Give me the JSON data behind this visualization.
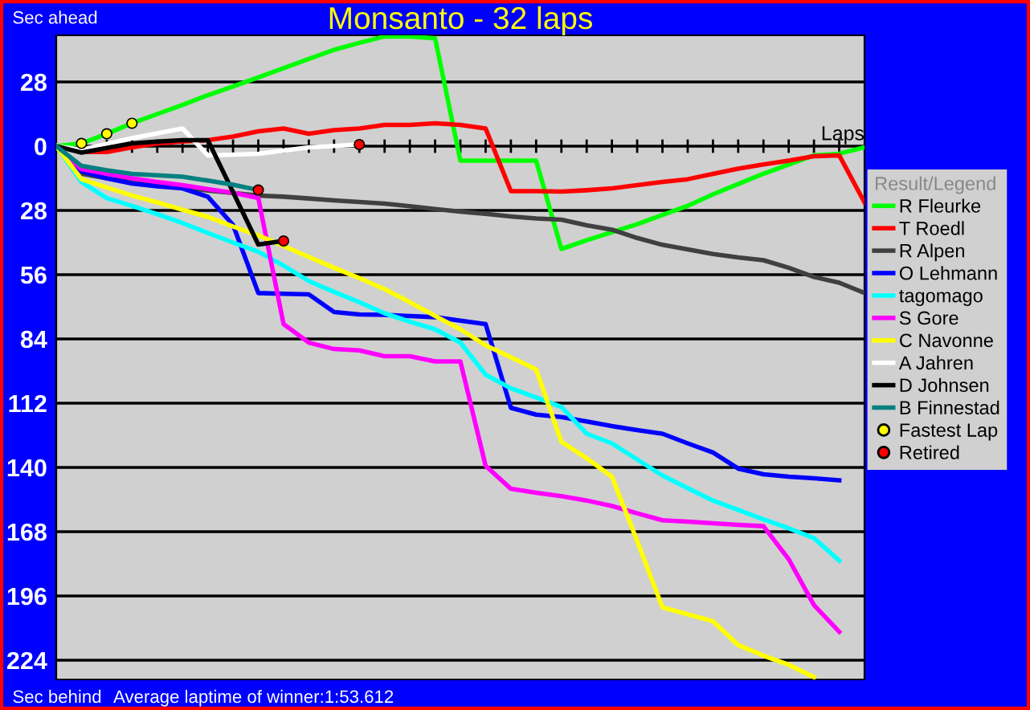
{
  "chart_data": {
    "type": "line",
    "title": "Monsanto - 32 laps",
    "xlabel": "Laps",
    "ylabel": "Sec ahead",
    "annotations": [
      "Sec behind",
      "Average laptime of winner:1:53.612"
    ],
    "legend_title": "Result/Legend",
    "legend": "right",
    "grid": "y",
    "tick_labels": "y",
    "marker": "none",
    "line_style": "solid",
    "categories": [
      null,
      null,
      null,
      null,
      null,
      null,
      null,
      null,
      null,
      null,
      null,
      null,
      null,
      null,
      null,
      null,
      null,
      null,
      null,
      null,
      null,
      null,
      null,
      null,
      null,
      null,
      null,
      null,
      null,
      null,
      null,
      null,
      null
    ],
    "ylim": [
      -232.4,
      48.3
    ],
    "yticks": [
      {
        "value": 28,
        "label": "28"
      },
      {
        "value": 0,
        "label": "0"
      },
      {
        "value": -28,
        "label": "28"
      },
      {
        "value": -56,
        "label": "56"
      },
      {
        "value": -84,
        "label": "84"
      },
      {
        "value": -112,
        "label": "112"
      },
      {
        "value": -140,
        "label": "140"
      },
      {
        "value": -168,
        "label": "168"
      },
      {
        "value": -196,
        "label": "196"
      },
      {
        "value": -224,
        "label": "224"
      }
    ],
    "series": [
      {
        "name": "R Fleurke",
        "color": "#00ff00",
        "values": [
          0,
          1.2,
          5.4,
          10,
          14,
          18,
          22.2,
          26,
          30,
          34,
          38,
          42,
          45,
          47.8,
          47.8,
          47,
          -6.3,
          -6.3,
          -6.3,
          -6.3,
          -44.8,
          -41,
          -37.5,
          -34,
          -30,
          -26,
          -21,
          -16.5,
          -12,
          -8,
          -4,
          -3.3,
          -0.5
        ]
      },
      {
        "name": "T Roedl",
        "color": "#ff0000",
        "values": [
          0,
          -2.5,
          -2.5,
          -0.5,
          1.2,
          2,
          2.6,
          4.2,
          6.5,
          7.7,
          5.4,
          7,
          7.7,
          9.3,
          9.3,
          10,
          9.3,
          7.7,
          -19.6,
          -19.6,
          -19.8,
          -19.2,
          -18.4,
          -17,
          -15.6,
          -14.4,
          -12.1,
          -9.8,
          -8,
          -6.3,
          -4.4,
          -4,
          -24.5
        ]
      },
      {
        "name": "R Alpen",
        "color": "#404040",
        "values": [
          0,
          -12,
          -14,
          -15.5,
          -16.8,
          -18,
          -19.3,
          -20.4,
          -21.5,
          -22,
          -22.8,
          -23.6,
          -24.3,
          -25,
          -26.2,
          -27.4,
          -28.5,
          -29.5,
          -30.6,
          -31.5,
          -32,
          -34.5,
          -36.4,
          -40,
          -43,
          -45,
          -47,
          -48.5,
          -49.7,
          -53,
          -57,
          -59.5,
          -64
        ]
      },
      {
        "name": "O Lehmann",
        "color": "#0000ff",
        "values": [
          0,
          -11,
          -14,
          -16.3,
          -17.5,
          -18.4,
          -22,
          -34.3,
          -64,
          -64.3,
          -64.6,
          -72.3,
          -73.3,
          -73.5,
          -74,
          -74.5,
          -76,
          -77.5,
          -114,
          -117,
          -118,
          -120,
          -122,
          -123.7,
          -125.3,
          -129.5,
          -133.5,
          -140.5,
          -143,
          -144,
          -144.7,
          -145.6,
          null
        ]
      },
      {
        "name": "tagomago",
        "color": "#00ffff",
        "values": [
          0,
          -15.6,
          -22.6,
          -26,
          -29.6,
          -33.5,
          -37.8,
          -42,
          -46,
          -52,
          -58.8,
          -63.5,
          -68,
          -72.8,
          -76.5,
          -79.8,
          -85.6,
          -99.6,
          -105.5,
          -109.5,
          -113.6,
          -125.3,
          -129.5,
          -136.5,
          -143.5,
          -149,
          -154.4,
          -158.5,
          -162.6,
          -166.5,
          -170.8,
          -180.6,
          null
        ]
      },
      {
        "name": "S Gore",
        "color": "#ff00ff",
        "values": [
          0,
          -10,
          -12,
          -14,
          -15.6,
          -17,
          -18.7,
          -20.3,
          -22.6,
          -77.5,
          -85.6,
          -88.4,
          -89,
          -91.5,
          -91.5,
          -93.8,
          -93.8,
          -139.3,
          -149.3,
          -151,
          -152.5,
          -154.4,
          -156.8,
          -160,
          -163,
          -163.6,
          -164.3,
          -165,
          -165.6,
          -180,
          -200,
          -211.6,
          null
        ]
      },
      {
        "name": "C Navonne",
        "color": "#ffff00",
        "values": [
          0,
          -14.4,
          -18,
          -21.5,
          -24.5,
          -27.7,
          -30.8,
          -35,
          -38.9,
          -43.5,
          -48.3,
          -53,
          -57.5,
          -62.3,
          -68,
          -74,
          -79.8,
          -86.8,
          -92,
          -97.3,
          -128.8,
          -136,
          -144,
          -172,
          -201,
          -204,
          -207,
          -217.4,
          -222,
          -226,
          -231.4,
          null,
          null
        ]
      },
      {
        "name": "A Jahren",
        "color": "#ffffff",
        "values": [
          0,
          -1.6,
          1,
          3.5,
          5.6,
          7.7,
          -4,
          -3.7,
          -3.3,
          -1.9,
          -0.5,
          0.1,
          0.7,
          null,
          null,
          null,
          null,
          null,
          null,
          null,
          null,
          null,
          null,
          null,
          null,
          null,
          null,
          null,
          null,
          null,
          null,
          null,
          null
        ]
      },
      {
        "name": "D Johnsen",
        "color": "#000000",
        "values": [
          0,
          -2.8,
          -0.8,
          1.2,
          2,
          2.6,
          2.6,
          -20,
          -42.9,
          -41.3,
          null,
          null,
          null,
          null,
          null,
          null,
          null,
          null,
          null,
          null,
          null,
          null,
          null,
          null,
          null,
          null,
          null,
          null,
          null,
          null,
          null,
          null,
          null
        ]
      },
      {
        "name": "B Finnestad",
        "color": "#008080",
        "values": [
          0,
          -8.6,
          -10.5,
          -12.1,
          -12.7,
          -13.3,
          -15,
          -16.8,
          -19.1,
          null,
          null,
          null,
          null,
          null,
          null,
          null,
          null,
          null,
          null,
          null,
          null,
          null,
          null,
          null,
          null,
          null,
          null,
          null,
          null,
          null,
          null,
          null,
          null
        ]
      },
      {
        "name": "Fastest Lap",
        "type": "scatter",
        "marker": "circle",
        "color": "#ffff00",
        "values": [
          null,
          1.2,
          5.4,
          10,
          null,
          null,
          null,
          null,
          null,
          null,
          null,
          null,
          null,
          null,
          null,
          null,
          null,
          null,
          null,
          null,
          null,
          null,
          null,
          null,
          null,
          null,
          null,
          null,
          null,
          null,
          null,
          null,
          null
        ]
      },
      {
        "name": "Retired",
        "type": "scatter",
        "marker": "circle",
        "color": "#ff0000",
        "values": [
          null,
          null,
          null,
          null,
          null,
          null,
          null,
          null,
          -19.1,
          -41.3,
          null,
          null,
          0.7,
          null,
          null,
          null,
          null,
          null,
          null,
          null,
          null,
          null,
          null,
          null,
          null,
          null,
          null,
          null,
          null,
          null,
          null,
          null,
          null
        ]
      }
    ]
  }
}
